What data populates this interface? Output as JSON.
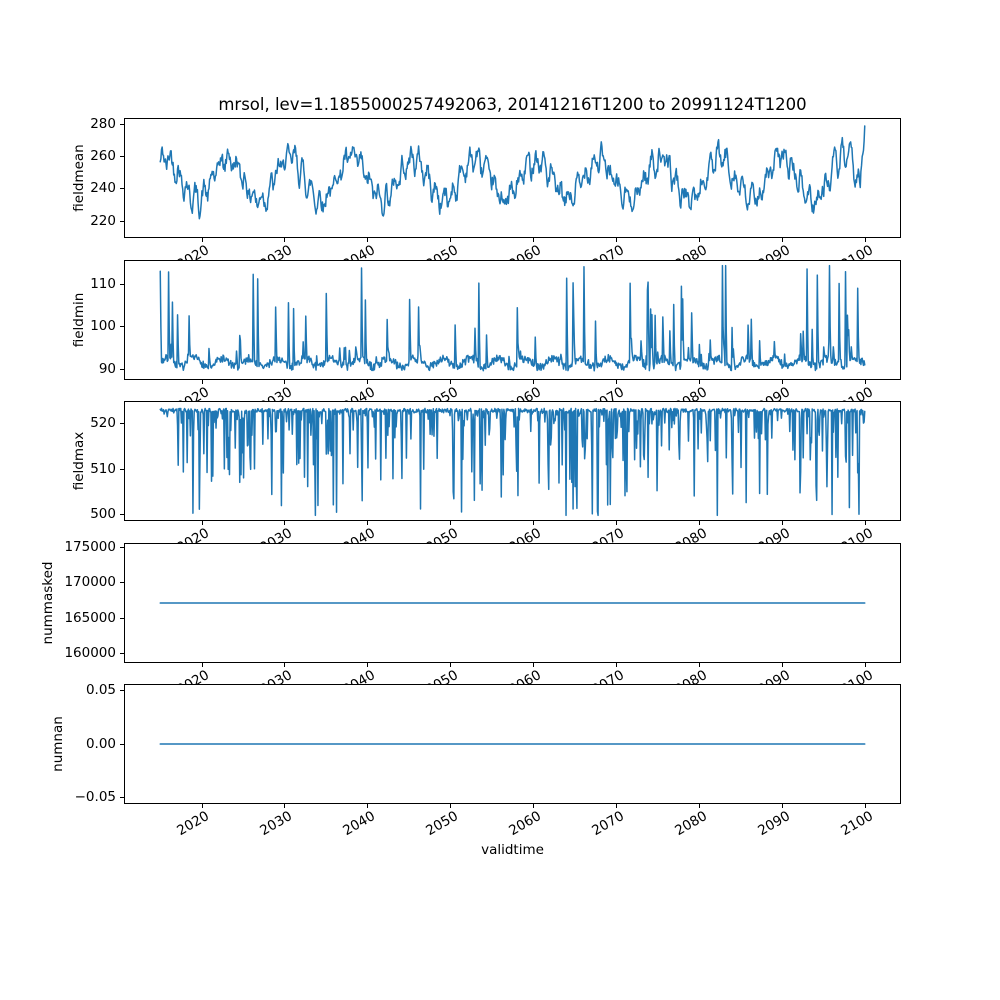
{
  "figure": {
    "background": "#ffffff",
    "text_color": "#000000",
    "spine_color": "#000000"
  },
  "chart_data": {
    "type": "line",
    "title": "mrsol, lev=1.1855000257492063, 20141216T1200 to 20991124T1200",
    "xlabel": "validtime",
    "line_color": "#1f77b4",
    "grid": false,
    "legend": "none",
    "x": {
      "ticks": [
        2020,
        2030,
        2040,
        2050,
        2060,
        2070,
        2080,
        2090,
        2100
      ],
      "tick_labels": [
        "2020",
        "2030",
        "2040",
        "2050",
        "2060",
        "2070",
        "2080",
        "2090",
        "2100"
      ],
      "tick_rotation_deg": 30,
      "lim": [
        2010.71,
        2104.15
      ],
      "data_start": 2014.96,
      "data_end": 2099.9
    },
    "panels": [
      {
        "ylabel": "fieldmean",
        "yticks": [
          220,
          240,
          260,
          280
        ],
        "ytick_labels": [
          "220",
          "240",
          "260",
          "280"
        ],
        "ylim": [
          210.2,
          283.3
        ],
        "summary": {
          "kind": "noisy seasonal line",
          "typical_range": [
            225,
            275
          ],
          "approx_min": 214,
          "approx_max": 279,
          "last_value": 279
        },
        "gen": {
          "kind": "seasonal",
          "seed": 42,
          "n": 1100,
          "base": 246,
          "slow_amp": 12.5,
          "slow_period": 96,
          "slow_phase": 0.9,
          "fast_amp": 5,
          "fast_period": 12.94,
          "jitter": 5,
          "ar": 0.6,
          "clamp": [
            213.5,
            279.5
          ],
          "end_value": 279
        }
      },
      {
        "ylabel": "fieldmin",
        "yticks": [
          90,
          100,
          110
        ],
        "ytick_labels": [
          "90",
          "100",
          "110"
        ],
        "ylim": [
          87.7,
          115.6
        ],
        "summary": {
          "kind": "spiky line with upward spikes",
          "baseline": 91,
          "approx_min": 89,
          "approx_max": 114.5
        },
        "gen": {
          "kind": "spikes_up",
          "seed": 7,
          "n": 1100,
          "base": 90.6,
          "base_jitter": 1.9,
          "wave_amp": 1.0,
          "wave_period": 43,
          "spike_prob": 0.09,
          "spike_min": 2.5,
          "spike_max": 23.5,
          "clamp": [
            88.8,
            114.5
          ]
        }
      },
      {
        "ylabel": "fieldmax",
        "yticks": [
          500,
          510,
          520
        ],
        "ytick_labels": [
          "500",
          "510",
          "520"
        ],
        "ylim": [
          498.9,
          524.6
        ],
        "summary": {
          "kind": "dense line with downward spikes",
          "baseline": 523,
          "approx_min": 499.9,
          "approx_max": 523.4
        },
        "gen": {
          "kind": "spikes_down",
          "seed": 99,
          "n": 1100,
          "base": 523.2,
          "base_jitter": 0.8,
          "spike_prob": 0.55,
          "spike_pow": 4,
          "spike_max": 23.3,
          "clamp": [
            499.9,
            523.4
          ]
        }
      },
      {
        "ylabel": "nummasked",
        "yticks": [
          160000,
          165000,
          170000,
          175000
        ],
        "ytick_labels": [
          "160000",
          "165000",
          "170000",
          "175000"
        ],
        "ylim": [
          158808,
          175524
        ],
        "summary": {
          "kind": "constant line",
          "value": 167166
        },
        "gen": {
          "kind": "constant",
          "n": 2,
          "value": 167166
        }
      },
      {
        "ylabel": "numnan",
        "yticks": [
          -0.05,
          0,
          0.05
        ],
        "ytick_labels": [
          "−0.05",
          "0.00",
          "0.05"
        ],
        "ylim": [
          -0.0555,
          0.0555
        ],
        "summary": {
          "kind": "constant line",
          "value": 0
        },
        "gen": {
          "kind": "constant",
          "n": 2,
          "value": 0
        }
      }
    ]
  }
}
